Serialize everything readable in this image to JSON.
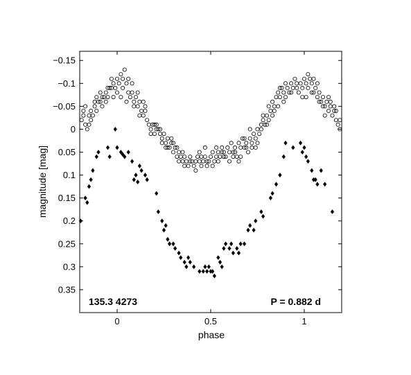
{
  "chart_data": {
    "type": "scatter",
    "title": "",
    "xlabel": "phase",
    "ylabel": "magnitude  [mag]",
    "xlim": [
      -0.2,
      1.2
    ],
    "ylim": [
      -0.17,
      0.4
    ],
    "y_reversed": true,
    "grid": false,
    "x_ticks": [
      0,
      0.5,
      1
    ],
    "x_tick_labels": [
      "0",
      "0.5",
      "1"
    ],
    "y_ticks": [
      -0.15,
      -0.1,
      -0.05,
      0,
      0.05,
      0.1,
      0.15,
      0.2,
      0.25,
      0.3,
      0.35
    ],
    "y_tick_labels": [
      "−0.15",
      "−0.1",
      "−0.05",
      "0",
      "0.05",
      "0.1",
      "0.15",
      "0.2",
      "0.25",
      "0.3",
      "0.35"
    ],
    "annotations": [
      {
        "text": "135.3 4273",
        "position": "bottom-left"
      },
      {
        "text": "P = 0.882 d",
        "position": "bottom-right"
      }
    ],
    "series": [
      {
        "marker": "open-circle",
        "points": [
          [
            -0.19,
            -0.02
          ],
          [
            -0.18,
            -0.03
          ],
          [
            -0.17,
            -0.01
          ],
          [
            -0.16,
            0.0
          ],
          [
            -0.15,
            -0.01
          ],
          [
            -0.14,
            -0.04
          ],
          [
            -0.13,
            -0.03
          ],
          [
            -0.12,
            -0.05
          ],
          [
            -0.11,
            -0.04
          ],
          [
            -0.1,
            -0.06
          ],
          [
            -0.09,
            -0.06
          ],
          [
            -0.08,
            -0.05
          ],
          [
            -0.07,
            -0.07
          ],
          [
            -0.06,
            -0.08
          ],
          [
            -0.05,
            -0.07
          ],
          [
            -0.04,
            -0.09
          ],
          [
            -0.03,
            -0.11
          ],
          [
            -0.02,
            -0.1
          ],
          [
            -0.01,
            -0.09
          ],
          [
            0.0,
            -0.11
          ],
          [
            0.01,
            -0.1
          ],
          [
            0.02,
            -0.12
          ],
          [
            0.03,
            -0.11
          ],
          [
            0.04,
            -0.13
          ],
          [
            0.05,
            -0.1
          ],
          [
            0.06,
            -0.08
          ],
          [
            0.07,
            -0.07
          ],
          [
            0.08,
            -0.08
          ],
          [
            0.09,
            -0.06
          ],
          [
            0.1,
            -0.07
          ],
          [
            0.11,
            -0.05
          ],
          [
            0.12,
            -0.06
          ],
          [
            0.13,
            -0.04
          ],
          [
            0.14,
            -0.03
          ],
          [
            0.15,
            -0.04
          ],
          [
            0.16,
            -0.02
          ],
          [
            0.17,
            -0.01
          ],
          [
            0.18,
            0.0
          ],
          [
            0.19,
            -0.01
          ],
          [
            0.2,
            0.01
          ],
          [
            0.21,
            -0.01
          ],
          [
            0.22,
            0.0
          ],
          [
            0.23,
            0.01
          ],
          [
            0.24,
            0.02
          ],
          [
            0.25,
            0.01
          ],
          [
            0.26,
            0.03
          ],
          [
            0.27,
            0.02
          ],
          [
            0.28,
            0.04
          ],
          [
            0.29,
            0.03
          ],
          [
            0.3,
            0.05
          ],
          [
            0.31,
            0.04
          ],
          [
            0.32,
            0.06
          ],
          [
            0.33,
            0.05
          ],
          [
            0.34,
            0.06
          ],
          [
            0.35,
            0.07
          ],
          [
            0.36,
            0.06
          ],
          [
            0.37,
            0.07
          ],
          [
            0.38,
            0.08
          ],
          [
            0.39,
            0.06
          ],
          [
            0.4,
            0.07
          ],
          [
            0.41,
            0.08
          ],
          [
            0.42,
            0.07
          ],
          [
            0.43,
            0.06
          ],
          [
            0.44,
            0.07
          ],
          [
            0.45,
            0.08
          ],
          [
            0.46,
            0.07
          ],
          [
            0.47,
            0.06
          ],
          [
            0.48,
            0.08
          ],
          [
            0.49,
            0.07
          ],
          [
            0.5,
            0.06
          ],
          [
            0.51,
            0.05
          ],
          [
            0.52,
            0.07
          ],
          [
            0.53,
            0.06
          ],
          [
            0.54,
            0.05
          ],
          [
            0.55,
            0.06
          ],
          [
            0.56,
            0.04
          ],
          [
            0.57,
            0.05
          ],
          [
            0.58,
            0.06
          ],
          [
            0.59,
            0.04
          ],
          [
            0.6,
            0.05
          ],
          [
            0.61,
            0.03
          ],
          [
            0.62,
            0.05
          ],
          [
            0.63,
            0.04
          ],
          [
            0.64,
            0.06
          ],
          [
            0.65,
            0.03
          ],
          [
            0.66,
            0.04
          ],
          [
            0.67,
            0.02
          ],
          [
            0.68,
            0.04
          ],
          [
            0.69,
            0.03
          ],
          [
            0.7,
            0.05
          ],
          [
            0.71,
            0.02
          ],
          [
            0.72,
            0.03
          ],
          [
            0.73,
            0.01
          ],
          [
            0.74,
            0.02
          ],
          [
            0.75,
            0.0
          ],
          [
            0.76,
            0.01
          ],
          [
            0.77,
            -0.01
          ],
          [
            0.78,
            -0.02
          ],
          [
            0.79,
            -0.01
          ],
          [
            0.8,
            -0.03
          ],
          [
            0.81,
            -0.05
          ],
          [
            0.82,
            -0.04
          ],
          [
            0.83,
            -0.06
          ],
          [
            0.84,
            -0.05
          ],
          [
            0.85,
            -0.07
          ],
          [
            0.86,
            -0.08
          ],
          [
            0.87,
            -0.07
          ],
          [
            0.88,
            -0.09
          ],
          [
            0.89,
            -0.08
          ],
          [
            0.9,
            -0.07
          ],
          [
            0.91,
            -0.09
          ],
          [
            0.92,
            -0.08
          ],
          [
            0.93,
            -0.1
          ],
          [
            0.94,
            -0.09
          ],
          [
            0.95,
            -0.11
          ],
          [
            0.96,
            -0.1
          ],
          [
            0.97,
            -0.08
          ],
          [
            0.98,
            -0.1
          ],
          [
            0.99,
            -0.09
          ],
          [
            1.0,
            -0.11
          ],
          [
            1.01,
            -0.1
          ],
          [
            1.02,
            -0.12
          ],
          [
            1.03,
            -0.11
          ],
          [
            1.04,
            -0.1
          ],
          [
            1.05,
            -0.08
          ],
          [
            1.06,
            -0.09
          ],
          [
            1.07,
            -0.07
          ],
          [
            1.08,
            -0.08
          ],
          [
            1.09,
            -0.06
          ],
          [
            1.1,
            -0.07
          ],
          [
            1.11,
            -0.05
          ],
          [
            1.12,
            -0.06
          ],
          [
            1.13,
            -0.04
          ],
          [
            1.14,
            -0.05
          ],
          [
            1.15,
            -0.03
          ],
          [
            1.16,
            -0.04
          ],
          [
            1.17,
            -0.02
          ],
          [
            1.18,
            -0.01
          ],
          [
            1.19,
            -0.02
          ],
          [
            -0.18,
            -0.04
          ],
          [
            -0.15,
            -0.03
          ],
          [
            -0.12,
            -0.06
          ],
          [
            -0.09,
            -0.08
          ],
          [
            -0.06,
            -0.06
          ],
          [
            -0.03,
            -0.09
          ],
          [
            0.0,
            -0.08
          ],
          [
            0.03,
            -0.09
          ],
          [
            0.06,
            -0.11
          ],
          [
            0.09,
            -0.05
          ],
          [
            0.12,
            -0.03
          ],
          [
            0.15,
            -0.05
          ],
          [
            0.18,
            0.01
          ],
          [
            0.21,
            0.0
          ],
          [
            0.24,
            0.03
          ],
          [
            0.27,
            0.04
          ],
          [
            0.3,
            0.03
          ],
          [
            0.33,
            0.07
          ],
          [
            0.36,
            0.08
          ],
          [
            0.39,
            0.07
          ],
          [
            0.42,
            0.09
          ],
          [
            0.45,
            0.06
          ],
          [
            0.48,
            0.07
          ],
          [
            0.51,
            0.08
          ],
          [
            0.54,
            0.07
          ],
          [
            0.57,
            0.06
          ],
          [
            0.6,
            0.07
          ],
          [
            0.63,
            0.05
          ],
          [
            0.66,
            0.06
          ],
          [
            0.69,
            0.04
          ],
          [
            0.72,
            0.04
          ],
          [
            0.75,
            0.03
          ],
          [
            0.78,
            -0.03
          ],
          [
            0.81,
            -0.02
          ],
          [
            0.84,
            -0.04
          ],
          [
            0.87,
            -0.09
          ],
          [
            0.9,
            -0.1
          ],
          [
            0.93,
            -0.08
          ],
          [
            0.96,
            -0.09
          ],
          [
            0.99,
            -0.07
          ],
          [
            1.02,
            -0.09
          ],
          [
            1.05,
            -0.11
          ],
          [
            1.08,
            -0.06
          ],
          [
            1.11,
            -0.03
          ],
          [
            1.14,
            -0.06
          ],
          [
            1.17,
            -0.04
          ],
          [
            0.02,
            -0.07
          ],
          [
            0.05,
            -0.06
          ],
          [
            0.08,
            -0.1
          ],
          [
            0.11,
            -0.08
          ],
          [
            0.14,
            -0.06
          ],
          [
            0.2,
            -0.01
          ],
          [
            0.23,
            0.0
          ],
          [
            0.26,
            0.04
          ],
          [
            0.29,
            0.02
          ],
          [
            0.32,
            0.04
          ],
          [
            0.35,
            0.05
          ],
          [
            0.44,
            0.05
          ],
          [
            0.47,
            0.04
          ],
          [
            0.53,
            0.04
          ],
          [
            0.56,
            0.05
          ],
          [
            0.62,
            0.06
          ],
          [
            0.65,
            0.07
          ],
          [
            0.68,
            0.02
          ],
          [
            0.71,
            0.0
          ],
          [
            0.74,
            0.04
          ],
          [
            0.77,
            0.0
          ],
          [
            0.8,
            -0.01
          ],
          [
            0.83,
            -0.03
          ],
          [
            0.86,
            -0.05
          ],
          [
            0.89,
            -0.06
          ],
          [
            1.01,
            -0.07
          ],
          [
            1.04,
            -0.08
          ],
          [
            1.07,
            -0.1
          ],
          [
            1.1,
            -0.05
          ],
          [
            1.13,
            -0.07
          ],
          [
            1.16,
            -0.05
          ],
          [
            1.19,
            0.0
          ],
          [
            -0.17,
            -0.05
          ],
          [
            -0.14,
            -0.02
          ],
          [
            -0.11,
            -0.07
          ],
          [
            -0.08,
            -0.07
          ],
          [
            -0.05,
            -0.09
          ],
          [
            -0.02,
            -0.07
          ]
        ]
      },
      {
        "marker": "filled-diamond",
        "points": [
          [
            -0.195,
            0.2
          ],
          [
            -0.17,
            0.15
          ],
          [
            -0.16,
            0.16
          ],
          [
            -0.14,
            0.11
          ],
          [
            -0.13,
            0.09
          ],
          [
            -0.11,
            0.06
          ],
          [
            -0.1,
            0.05
          ],
          [
            -0.05,
            0.04
          ],
          [
            -0.04,
            0.06
          ],
          [
            -0.01,
            0.0
          ],
          [
            0.0,
            0.04
          ],
          [
            0.02,
            0.05
          ],
          [
            0.03,
            0.055
          ],
          [
            0.04,
            0.06
          ],
          [
            0.06,
            0.05
          ],
          [
            0.08,
            0.07
          ],
          [
            0.09,
            0.11
          ],
          [
            0.1,
            0.1
          ],
          [
            0.11,
            0.115
          ],
          [
            0.12,
            0.08
          ],
          [
            0.13,
            0.09
          ],
          [
            0.15,
            0.1
          ],
          [
            0.16,
            0.11
          ],
          [
            0.21,
            0.14
          ],
          [
            0.22,
            0.18
          ],
          [
            0.24,
            0.2
          ],
          [
            0.25,
            0.22
          ],
          [
            0.26,
            0.21
          ],
          [
            0.27,
            0.24
          ],
          [
            0.28,
            0.25
          ],
          [
            0.3,
            0.25
          ],
          [
            0.31,
            0.26
          ],
          [
            0.33,
            0.27
          ],
          [
            0.36,
            0.29
          ],
          [
            0.37,
            0.3
          ],
          [
            0.38,
            0.28
          ],
          [
            0.39,
            0.29
          ],
          [
            0.41,
            0.3
          ],
          [
            0.44,
            0.31
          ],
          [
            0.46,
            0.31
          ],
          [
            0.47,
            0.3
          ],
          [
            0.48,
            0.31
          ],
          [
            0.49,
            0.3
          ],
          [
            0.5,
            0.31
          ],
          [
            0.51,
            0.31
          ],
          [
            0.52,
            0.32
          ],
          [
            0.54,
            0.28
          ],
          [
            0.55,
            0.29
          ],
          [
            0.57,
            0.26
          ],
          [
            0.58,
            0.25
          ],
          [
            0.6,
            0.26
          ],
          [
            0.61,
            0.25
          ],
          [
            0.62,
            0.27
          ],
          [
            0.64,
            0.26
          ],
          [
            0.65,
            0.27
          ],
          [
            0.68,
            0.25
          ],
          [
            0.7,
            0.22
          ],
          [
            0.71,
            0.21
          ],
          [
            0.73,
            0.22
          ],
          [
            0.74,
            0.2
          ],
          [
            0.77,
            0.18
          ],
          [
            0.78,
            0.19
          ],
          [
            0.82,
            0.15
          ],
          [
            0.83,
            0.14
          ],
          [
            0.85,
            0.12
          ],
          [
            0.87,
            0.1
          ],
          [
            0.89,
            0.06
          ],
          [
            0.9,
            0.03
          ],
          [
            0.94,
            0.04
          ],
          [
            0.98,
            0.03
          ],
          [
            0.99,
            0.05
          ],
          [
            1.0,
            0.04
          ],
          [
            1.01,
            0.06
          ],
          [
            1.02,
            0.07
          ],
          [
            1.04,
            0.09
          ],
          [
            1.05,
            0.11
          ],
          [
            1.06,
            0.11
          ],
          [
            1.07,
            0.12
          ],
          [
            1.09,
            0.09
          ],
          [
            1.11,
            0.12
          ],
          [
            1.15,
            0.18
          ],
          [
            -0.15,
            0.125
          ],
          [
            0.34,
            0.28
          ],
          [
            0.56,
            0.3
          ],
          [
            0.66,
            0.25
          ]
        ]
      }
    ]
  }
}
